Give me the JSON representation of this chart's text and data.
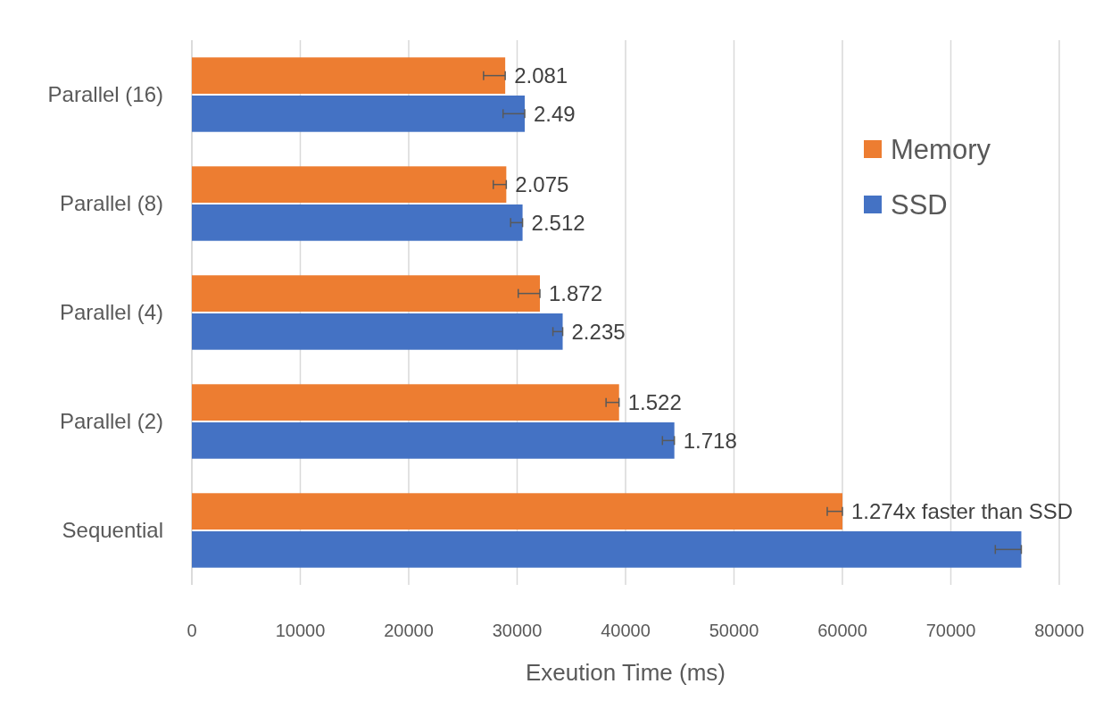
{
  "chart_data": {
    "type": "bar",
    "orientation": "horizontal",
    "xlabel": "Exeution Time (ms)",
    "categories": [
      "Parallel (16)",
      "Parallel (8)",
      "Parallel (4)",
      "Parallel (2)",
      "Sequential"
    ],
    "series": [
      {
        "name": "Memory",
        "color": "#ed7d31",
        "values": [
          28900,
          29000,
          32100,
          39400,
          60000
        ],
        "errors": [
          [
            26900,
            28900
          ],
          [
            27800,
            29000
          ],
          [
            30100,
            32100
          ],
          [
            38200,
            39400
          ],
          [
            58600,
            60000
          ]
        ]
      },
      {
        "name": "SSD",
        "color": "#4472c4",
        "values": [
          30700,
          30500,
          34200,
          44500,
          76500
        ],
        "errors": [
          [
            28700,
            30700
          ],
          [
            29400,
            30500
          ],
          [
            33300,
            34200
          ],
          [
            43400,
            44500
          ],
          [
            74100,
            76500
          ]
        ]
      }
    ],
    "annotations": [
      {
        "text": "2.081",
        "x": 28900,
        "y": "Parallel (16)"
      },
      {
        "text": "2.49",
        "x": 30700,
        "y": "Parallel (16)"
      },
      {
        "text": "2.075",
        "x": 29000,
        "y": "Parallel (8)"
      },
      {
        "text": "2.512",
        "x": 30500,
        "y": "Parallel (8)"
      },
      {
        "text": "1.872",
        "x": 32100,
        "y": "Parallel (4)"
      },
      {
        "text": "2.235",
        "x": 34200,
        "y": "Parallel (4)"
      },
      {
        "text": "1.522",
        "x": 39400,
        "y": "Parallel (2)"
      },
      {
        "text": "1.718",
        "x": 44500,
        "y": "Parallel (2)"
      },
      {
        "text": "1.274x faster than SSD",
        "x": 60000,
        "y": "Sequential"
      }
    ],
    "xlim": [
      0,
      80000
    ],
    "xticks": [
      0,
      10000,
      20000,
      30000,
      40000,
      50000,
      60000,
      70000,
      80000
    ],
    "grid": "x",
    "legend": "right"
  }
}
